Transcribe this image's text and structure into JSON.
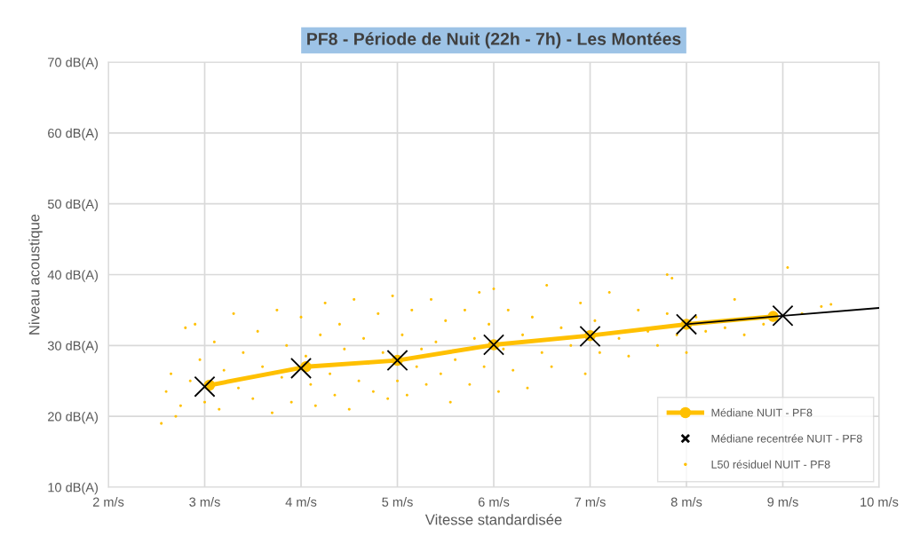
{
  "chart_data": {
    "type": "scatter",
    "title": "PF8 - Période de Nuit (22h - 7h) - Les Montées",
    "xlabel": "Vitesse standardisée",
    "ylabel": "Niveau acoustique",
    "xlim": [
      2,
      10
    ],
    "ylim": [
      10,
      70
    ],
    "xticks": [
      {
        "value": 2,
        "label": "2 m/s"
      },
      {
        "value": 3,
        "label": "3 m/s"
      },
      {
        "value": 4,
        "label": "4 m/s"
      },
      {
        "value": 5,
        "label": "5 m/s"
      },
      {
        "value": 6,
        "label": "6 m/s"
      },
      {
        "value": 7,
        "label": "7 m/s"
      },
      {
        "value": 8,
        "label": "8 m/s"
      },
      {
        "value": 9,
        "label": "9 m/s"
      },
      {
        "value": 10,
        "label": "10 m/s"
      }
    ],
    "yticks": [
      {
        "value": 10,
        "label": "10 dB(A)"
      },
      {
        "value": 20,
        "label": "20 dB(A)"
      },
      {
        "value": 30,
        "label": "30 dB(A)"
      },
      {
        "value": 40,
        "label": "40 dB(A)"
      },
      {
        "value": 50,
        "label": "50 dB(A)"
      },
      {
        "value": 60,
        "label": "60 dB(A)"
      },
      {
        "value": 70,
        "label": "70 dB(A)"
      }
    ],
    "grid": true,
    "legend": "bottom right",
    "series": [
      {
        "name": "Médiane NUIT - PF8",
        "type": "line",
        "marker": "circle",
        "color": "#ffc000",
        "x": [
          3.05,
          4.05,
          5.0,
          6.0,
          7.0,
          8.0,
          8.9
        ],
        "values": [
          24.4,
          27.0,
          27.9,
          30.1,
          31.4,
          33.0,
          34.1
        ]
      },
      {
        "name": "Médiane recentrée NUIT - PF8",
        "type": "scatter",
        "marker": "cross",
        "color": "#000000",
        "x": [
          3,
          4,
          5,
          6,
          7,
          8,
          9
        ],
        "values": [
          24.2,
          26.8,
          27.9,
          30.1,
          31.3,
          33.0,
          34.2
        ]
      },
      {
        "name": "L50 résiduel NUIT - PF8",
        "marker": "circle",
        "color": "#ffc000",
        "x": [
          2.55,
          2.6,
          2.65,
          2.7,
          2.75,
          2.8,
          2.85,
          2.9,
          2.95,
          3.0,
          3.1,
          3.15,
          3.2,
          3.3,
          3.35,
          3.4,
          3.5,
          3.55,
          3.6,
          3.7,
          3.75,
          3.8,
          3.85,
          3.9,
          4.0,
          4.05,
          4.1,
          4.15,
          4.2,
          4.25,
          4.3,
          4.35,
          4.4,
          4.45,
          4.5,
          4.55,
          4.6,
          4.65,
          4.7,
          4.75,
          4.8,
          4.85,
          4.9,
          4.95,
          5.0,
          5.05,
          5.1,
          5.15,
          5.2,
          5.25,
          5.3,
          5.35,
          5.4,
          5.45,
          5.5,
          5.55,
          5.6,
          5.7,
          5.75,
          5.8,
          5.85,
          5.9,
          5.95,
          6.0,
          6.05,
          6.1,
          6.15,
          6.2,
          6.3,
          6.35,
          6.4,
          6.5,
          6.55,
          6.6,
          6.7,
          6.8,
          6.9,
          6.95,
          7.05,
          7.1,
          7.2,
          7.3,
          7.4,
          7.5,
          7.6,
          7.7,
          7.8,
          7.8,
          7.85,
          7.9,
          8.0,
          8.1,
          8.2,
          8.4,
          8.5,
          8.6,
          8.8,
          9.05,
          9.2,
          9.4,
          9.5
        ],
        "values": [
          19.0,
          23.5,
          26.0,
          20.0,
          21.5,
          32.5,
          25.0,
          33.0,
          28.0,
          22.0,
          30.5,
          21.0,
          26.5,
          34.5,
          24.0,
          29.0,
          22.5,
          32.0,
          27.0,
          20.5,
          35.0,
          25.5,
          30.0,
          22.0,
          34.0,
          28.5,
          24.5,
          21.5,
          31.5,
          36.0,
          26.0,
          23.0,
          33.0,
          29.5,
          21.0,
          36.5,
          25.0,
          31.0,
          27.5,
          23.5,
          34.5,
          29.0,
          22.5,
          37.0,
          25.0,
          31.5,
          23.0,
          35.0,
          27.0,
          29.5,
          24.5,
          36.5,
          30.5,
          26.0,
          33.5,
          22.0,
          28.0,
          35.0,
          24.5,
          31.0,
          37.5,
          27.0,
          33.0,
          38.0,
          23.5,
          29.5,
          35.0,
          26.5,
          31.5,
          24.0,
          34.0,
          29.0,
          38.5,
          27.0,
          32.5,
          30.0,
          36.0,
          26.0,
          33.5,
          29.0,
          37.5,
          31.0,
          28.5,
          35.0,
          32.0,
          30.0,
          34.5,
          40.0,
          39.5,
          31.5,
          29.0,
          34.0,
          32.0,
          32.5,
          36.5,
          31.5,
          33.0,
          41.0,
          34.5,
          35.5,
          35.8
        ]
      },
      {
        "type": "line",
        "color": "#000000",
        "x": [
          8,
          9,
          10
        ],
        "values": [
          33.0,
          34.2,
          35.3
        ]
      }
    ]
  }
}
